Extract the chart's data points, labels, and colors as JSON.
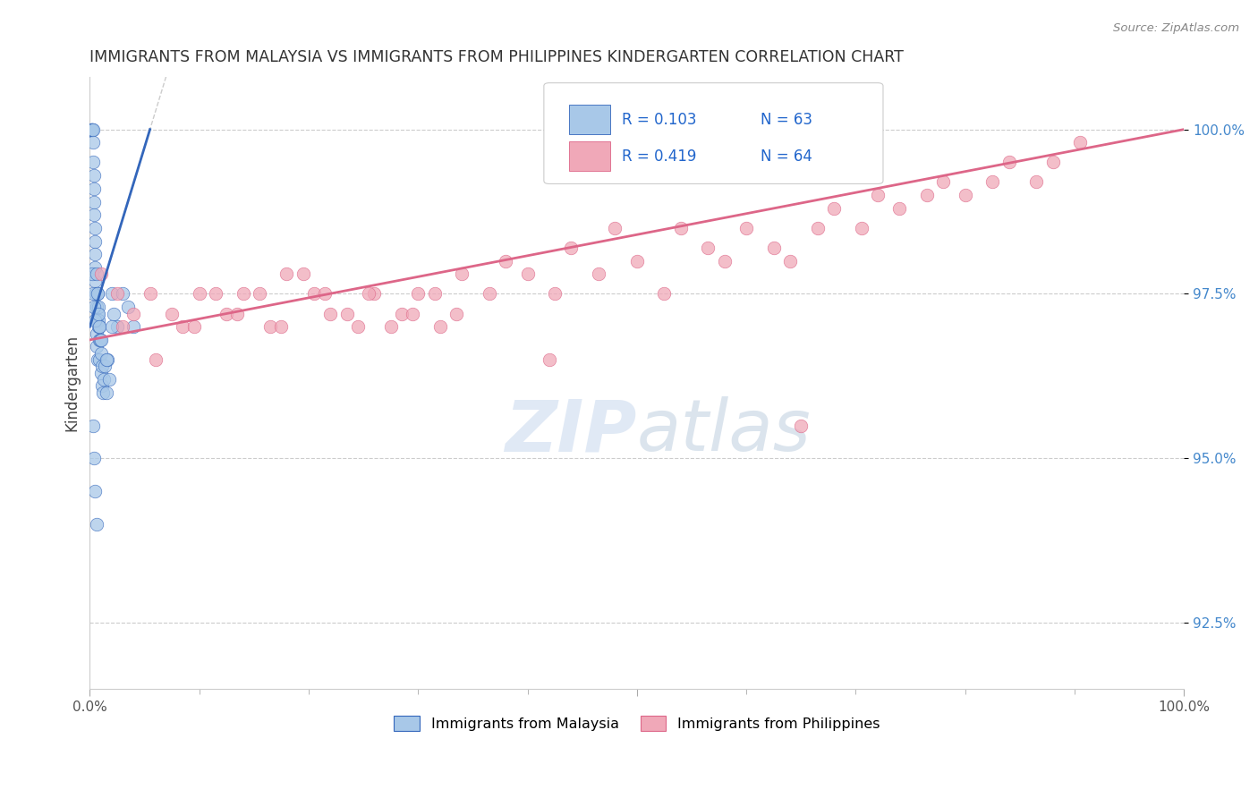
{
  "title": "IMMIGRANTS FROM MALAYSIA VS IMMIGRANTS FROM PHILIPPINES KINDERGARTEN CORRELATION CHART",
  "source": "Source: ZipAtlas.com",
  "ylabel": "Kindergarten",
  "xlim": [
    0,
    100
  ],
  "ylim": [
    91.5,
    100.8
  ],
  "y_ticks": [
    92.5,
    95.0,
    97.5,
    100.0
  ],
  "y_tick_labels": [
    "92.5%",
    "95.0%",
    "97.5%",
    "100.0%"
  ],
  "legend_labels": [
    "Immigrants from Malaysia",
    "Immigrants from Philippines"
  ],
  "color_malaysia": "#a8c8e8",
  "color_philippines": "#f0a8b8",
  "color_malaysia_line": "#3366bb",
  "color_malaysia_line_dashed": "#aaaaaa",
  "color_philippines_line": "#dd6688",
  "color_grid": "#cccccc",
  "watermark_color": "#c8d8ee",
  "malaysia_x": [
    0.1,
    0.15,
    0.2,
    0.2,
    0.25,
    0.3,
    0.3,
    0.3,
    0.35,
    0.4,
    0.4,
    0.4,
    0.45,
    0.5,
    0.5,
    0.5,
    0.5,
    0.55,
    0.6,
    0.6,
    0.6,
    0.65,
    0.7,
    0.7,
    0.7,
    0.75,
    0.8,
    0.8,
    0.85,
    0.9,
    0.9,
    0.95,
    1.0,
    1.0,
    1.1,
    1.1,
    1.2,
    1.3,
    1.4,
    1.5,
    1.6,
    1.8,
    2.0,
    2.2,
    2.5,
    0.2,
    0.3,
    0.4,
    0.5,
    0.6,
    0.7,
    0.8,
    0.9,
    1.0,
    1.5,
    2.0,
    3.0,
    3.5,
    4.0,
    0.3,
    0.4,
    0.5,
    0.6
  ],
  "malaysia_y": [
    100.0,
    100.0,
    100.0,
    100.0,
    100.0,
    100.0,
    99.8,
    99.5,
    99.3,
    99.1,
    98.9,
    98.7,
    98.5,
    98.3,
    98.1,
    97.9,
    97.7,
    97.5,
    97.3,
    97.1,
    96.9,
    96.7,
    96.5,
    97.2,
    97.5,
    97.0,
    97.3,
    97.1,
    96.8,
    97.0,
    96.5,
    96.8,
    96.3,
    96.6,
    96.1,
    96.4,
    96.0,
    96.2,
    96.4,
    96.0,
    96.5,
    96.2,
    97.5,
    97.2,
    97.0,
    97.8,
    97.5,
    97.3,
    97.1,
    97.8,
    97.5,
    97.2,
    97.0,
    96.8,
    96.5,
    97.0,
    97.5,
    97.3,
    97.0,
    95.5,
    95.0,
    94.5,
    94.0
  ],
  "philippines_x": [
    1.0,
    2.5,
    4.0,
    6.0,
    8.5,
    10.0,
    12.5,
    14.0,
    16.5,
    18.0,
    20.5,
    22.0,
    24.5,
    26.0,
    28.5,
    30.0,
    32.0,
    34.0,
    36.5,
    38.0,
    40.0,
    42.5,
    44.0,
    46.5,
    48.0,
    50.0,
    52.5,
    54.0,
    56.5,
    58.0,
    60.0,
    62.5,
    64.0,
    66.5,
    68.0,
    70.5,
    72.0,
    74.0,
    76.5,
    78.0,
    80.0,
    82.5,
    84.0,
    86.5,
    88.0,
    90.5,
    3.0,
    5.5,
    7.5,
    9.5,
    11.5,
    13.5,
    15.5,
    17.5,
    19.5,
    21.5,
    23.5,
    25.5,
    27.5,
    29.5,
    31.5,
    33.5,
    42.0,
    65.0
  ],
  "philippines_y": [
    97.8,
    97.5,
    97.2,
    96.5,
    97.0,
    97.5,
    97.2,
    97.5,
    97.0,
    97.8,
    97.5,
    97.2,
    97.0,
    97.5,
    97.2,
    97.5,
    97.0,
    97.8,
    97.5,
    98.0,
    97.8,
    97.5,
    98.2,
    97.8,
    98.5,
    98.0,
    97.5,
    98.5,
    98.2,
    98.0,
    98.5,
    98.2,
    98.0,
    98.5,
    98.8,
    98.5,
    99.0,
    98.8,
    99.0,
    99.2,
    99.0,
    99.2,
    99.5,
    99.2,
    99.5,
    99.8,
    97.0,
    97.5,
    97.2,
    97.0,
    97.5,
    97.2,
    97.5,
    97.0,
    97.8,
    97.5,
    97.2,
    97.5,
    97.0,
    97.2,
    97.5,
    97.2,
    96.5,
    95.5
  ],
  "malaysia_trend_x": [
    0,
    5
  ],
  "malaysia_trend_y_start": 97.0,
  "malaysia_trend_y_end": 100.0,
  "philippines_trend_x": [
    0,
    100
  ],
  "philippines_trend_y_start": 96.8,
  "philippines_trend_y_end": 100.0
}
